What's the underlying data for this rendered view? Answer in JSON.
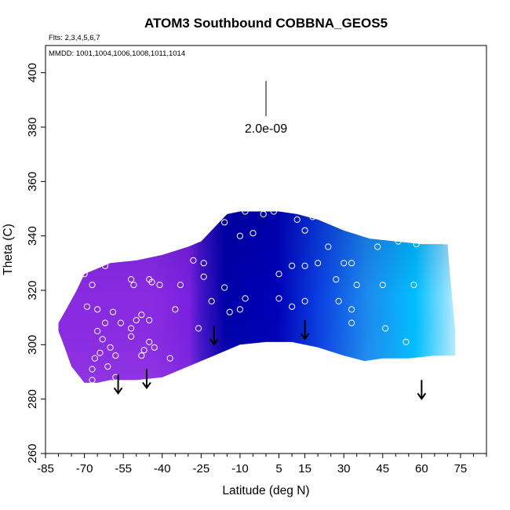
{
  "chart_data": {
    "type": "heatmap",
    "title": "ATOM3 Southbound COBBNA_GEOS5",
    "flights_label": "Flts: 2,3,4,5,6,7",
    "mmdd_label": "MMDD: 1001,1004,1006,1008,1011,1014",
    "xlabel": "Latitude (deg N)",
    "ylabel": "Theta (C)",
    "xlim": [
      -85,
      85
    ],
    "ylim": [
      260,
      410
    ],
    "x_ticks": [
      -85,
      -70,
      -55,
      -40,
      -25,
      -10,
      5,
      15,
      30,
      45,
      60,
      75
    ],
    "x_minor_ticks": [
      -80,
      -75,
      -65,
      -60,
      -50,
      -45,
      -35,
      -30,
      -20,
      -15,
      -5,
      0,
      10,
      20,
      25,
      35,
      40,
      50,
      55,
      65,
      70,
      80,
      85
    ],
    "y_ticks": [
      260,
      280,
      300,
      320,
      340,
      360,
      380,
      400
    ],
    "scale_bar_label": "2.0e-09",
    "scale_bar_value": 2e-09,
    "colors": {
      "purple": "#8a2be2",
      "navy": "#0000a8",
      "blue": "#0a3be0",
      "cyan": "#00bfff",
      "light_cyan": "#b8ecff",
      "axis": "#000000"
    },
    "field_top": [
      [
        -80,
        308
      ],
      [
        -77,
        313
      ],
      [
        -73,
        320
      ],
      [
        -70,
        326
      ],
      [
        -60,
        330
      ],
      [
        -50,
        331
      ],
      [
        -40,
        333
      ],
      [
        -30,
        336
      ],
      [
        -25,
        338
      ],
      [
        -20,
        343
      ],
      [
        -15,
        348
      ],
      [
        -10,
        349
      ],
      [
        -3,
        349
      ],
      [
        5,
        349
      ],
      [
        12,
        348
      ],
      [
        20,
        346
      ],
      [
        30,
        342
      ],
      [
        40,
        339
      ],
      [
        50,
        338
      ],
      [
        60,
        337
      ],
      [
        70,
        337
      ],
      [
        71,
        325
      ],
      [
        72,
        315
      ],
      [
        73,
        305
      ],
      [
        73,
        297
      ]
    ],
    "field_bottom": [
      [
        73,
        296
      ],
      [
        65,
        296
      ],
      [
        55,
        295
      ],
      [
        45,
        295
      ],
      [
        38,
        294
      ],
      [
        30,
        296
      ],
      [
        20,
        299
      ],
      [
        10,
        301
      ],
      [
        0,
        301
      ],
      [
        -10,
        300
      ],
      [
        -20,
        296
      ],
      [
        -30,
        292
      ],
      [
        -40,
        288
      ],
      [
        -50,
        287
      ],
      [
        -60,
        287
      ],
      [
        -65,
        286
      ],
      [
        -70,
        286
      ],
      [
        -75,
        292
      ],
      [
        -78,
        300
      ],
      [
        -80,
        305
      ]
    ],
    "obs_points": [
      [
        -70,
        326
      ],
      [
        -62,
        329
      ],
      [
        -67,
        322
      ],
      [
        -69,
        314
      ],
      [
        -65,
        313
      ],
      [
        -65,
        305
      ],
      [
        -62,
        308
      ],
      [
        -59,
        312
      ],
      [
        -56,
        308
      ],
      [
        -63,
        302
      ],
      [
        -60,
        299
      ],
      [
        -64,
        297
      ],
      [
        -58,
        296
      ],
      [
        -66,
        295
      ],
      [
        -61,
        292
      ],
      [
        -67,
        291
      ],
      [
        -58,
        288
      ],
      [
        -67,
        287
      ],
      [
        -52,
        324
      ],
      [
        -51,
        322
      ],
      [
        -45,
        324
      ],
      [
        -44,
        323
      ],
      [
        -41,
        322
      ],
      [
        -48,
        311
      ],
      [
        -50,
        309
      ],
      [
        -45,
        309
      ],
      [
        -52,
        306
      ],
      [
        -52,
        303
      ],
      [
        -45,
        301
      ],
      [
        -47,
        298
      ],
      [
        -43,
        299
      ],
      [
        -48,
        296
      ],
      [
        -37,
        295
      ],
      [
        -24,
        330
      ],
      [
        -28,
        331
      ],
      [
        -24,
        325
      ],
      [
        -33,
        322
      ],
      [
        -35,
        313
      ],
      [
        -21,
        316
      ],
      [
        -14,
        312
      ],
      [
        -16,
        321
      ],
      [
        -8,
        317
      ],
      [
        -26,
        306
      ],
      [
        -10,
        313
      ],
      [
        -16,
        345
      ],
      [
        -8,
        349
      ],
      [
        -1,
        348
      ],
      [
        -5,
        341
      ],
      [
        -10,
        340
      ],
      [
        3,
        349
      ],
      [
        12,
        346
      ],
      [
        18,
        347
      ],
      [
        15,
        342
      ],
      [
        10,
        329
      ],
      [
        15,
        329
      ],
      [
        20,
        330
      ],
      [
        24,
        336
      ],
      [
        5,
        326
      ],
      [
        5,
        317
      ],
      [
        15,
        316
      ],
      [
        10,
        314
      ],
      [
        30,
        330
      ],
      [
        33,
        330
      ],
      [
        35,
        322
      ],
      [
        27,
        324
      ],
      [
        28,
        316
      ],
      [
        33,
        313
      ],
      [
        33,
        308
      ],
      [
        43,
        336
      ],
      [
        51,
        338
      ],
      [
        58,
        337
      ],
      [
        69,
        338
      ],
      [
        45,
        322
      ],
      [
        57,
        322
      ],
      [
        46,
        306
      ],
      [
        54,
        301
      ]
    ],
    "arrows": [
      [
        -20,
        303
      ],
      [
        15,
        305
      ],
      [
        -57,
        285
      ],
      [
        -46,
        287
      ],
      [
        60,
        283
      ]
    ]
  }
}
